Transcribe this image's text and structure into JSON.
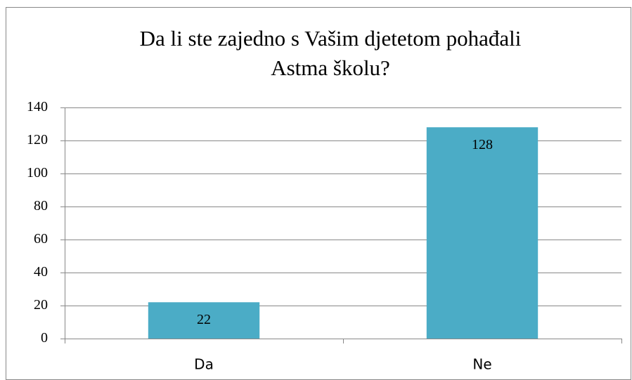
{
  "chart_data": {
    "type": "bar",
    "title": [
      "Da li ste zajedno s Vašim djetetom pohađali",
      "Astma školu?"
    ],
    "categories": [
      "Da",
      "Ne"
    ],
    "values": [
      22,
      128
    ],
    "color": "#4bacc6",
    "ylim": [
      0,
      140
    ],
    "yticks": [
      0,
      20,
      40,
      60,
      80,
      100,
      120,
      140
    ],
    "grid": true
  }
}
